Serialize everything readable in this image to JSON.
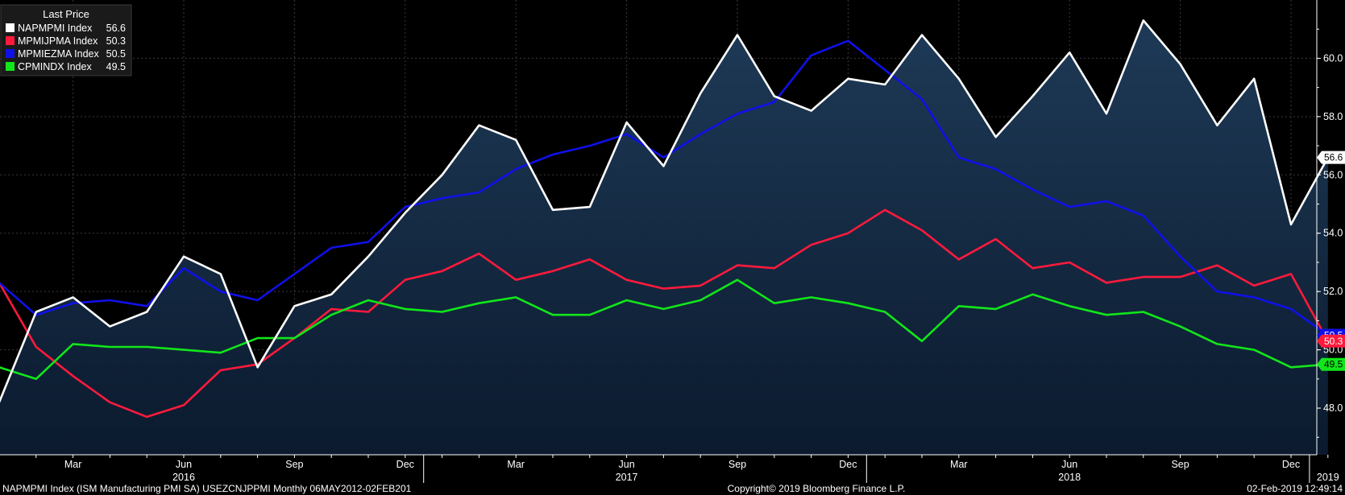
{
  "legend": {
    "title": "Last Price",
    "items": [
      {
        "name": "NAPMPMI Index",
        "value": "56.6",
        "color": "#ffffff"
      },
      {
        "name": "MPMIJPMA Index",
        "value": "50.3",
        "color": "#ff1a3c"
      },
      {
        "name": "MPMIEZMA Index",
        "value": "50.5",
        "color": "#1010e8"
      },
      {
        "name": "CPMINDX Index",
        "value": "49.5",
        "color": "#11e61a"
      }
    ]
  },
  "footer": {
    "left": "NAPMPMI Index (ISM Manufacturing PMI SA) USEZCNJPPMI  Monthly 06MAY2012-02FEB201",
    "center": "Copyright© 2019 Bloomberg Finance L.P.",
    "right": "02-Feb-2019 12:49:14"
  },
  "chart_data": {
    "type": "line",
    "title": "",
    "xlabel": "",
    "ylabel": "",
    "ylim": [
      46.4,
      62.0
    ],
    "y_ticks": [
      "48.0",
      "50.0",
      "52.0",
      "54.0",
      "56.0",
      "58.0",
      "60.0"
    ],
    "y_tick_values": [
      48,
      50,
      52,
      54,
      56,
      58,
      60
    ],
    "x_tick_labels": [
      {
        "label": "Mar",
        "month_index": 2
      },
      {
        "label": "Jun",
        "month_index": 5
      },
      {
        "label": "Sep",
        "month_index": 8
      },
      {
        "label": "Dec",
        "month_index": 11
      },
      {
        "label": "Mar",
        "month_index": 14
      },
      {
        "label": "Jun",
        "month_index": 17
      },
      {
        "label": "Sep",
        "month_index": 20
      },
      {
        "label": "Dec",
        "month_index": 23
      },
      {
        "label": "Mar",
        "month_index": 26
      },
      {
        "label": "Jun",
        "month_index": 29
      },
      {
        "label": "Sep",
        "month_index": 32
      },
      {
        "label": "Dec",
        "month_index": 35
      }
    ],
    "year_labels": [
      {
        "label": "2016",
        "month_index": 5
      },
      {
        "label": "2017",
        "month_index": 17
      },
      {
        "label": "2018",
        "month_index": 29
      },
      {
        "label": "2019",
        "month_index": 36
      }
    ],
    "x": [
      "2016-01",
      "2016-02",
      "2016-03",
      "2016-04",
      "2016-05",
      "2016-06",
      "2016-07",
      "2016-08",
      "2016-09",
      "2016-10",
      "2016-11",
      "2016-12",
      "2017-01",
      "2017-02",
      "2017-03",
      "2017-04",
      "2017-05",
      "2017-06",
      "2017-07",
      "2017-08",
      "2017-09",
      "2017-10",
      "2017-11",
      "2017-12",
      "2018-01",
      "2018-02",
      "2018-03",
      "2018-04",
      "2018-05",
      "2018-06",
      "2018-07",
      "2018-08",
      "2018-09",
      "2018-10",
      "2018-11",
      "2018-12",
      "2019-01"
    ],
    "series": [
      {
        "name": "NAPMPMI Index",
        "color": "#ffffff",
        "area": true,
        "last": "56.6",
        "values": [
          48.2,
          51.3,
          51.8,
          50.8,
          51.3,
          53.2,
          52.6,
          49.4,
          51.5,
          51.9,
          53.2,
          54.7,
          56.0,
          57.7,
          57.2,
          54.8,
          54.9,
          57.8,
          56.3,
          58.8,
          60.8,
          58.7,
          58.2,
          59.3,
          59.1,
          60.8,
          59.3,
          57.3,
          58.7,
          60.2,
          58.1,
          61.3,
          59.8,
          57.7,
          59.3,
          54.3,
          56.6
        ]
      },
      {
        "name": "MPMIJPMA Index",
        "color": "#ff1a3c",
        "area": false,
        "last": "50.3",
        "values": [
          52.3,
          50.1,
          49.1,
          48.2,
          47.7,
          48.1,
          49.3,
          49.5,
          50.4,
          51.4,
          51.3,
          52.4,
          52.7,
          53.3,
          52.4,
          52.7,
          53.1,
          52.4,
          52.1,
          52.2,
          52.9,
          52.8,
          53.6,
          54.0,
          54.8,
          54.1,
          53.1,
          53.8,
          52.8,
          53.0,
          52.3,
          52.5,
          52.5,
          52.9,
          52.2,
          52.6,
          50.3
        ]
      },
      {
        "name": "MPMIEZMA Index",
        "color": "#1010e8",
        "area": false,
        "last": "50.5",
        "values": [
          52.3,
          51.2,
          51.6,
          51.7,
          51.5,
          52.8,
          52.0,
          51.7,
          52.6,
          53.5,
          53.7,
          54.9,
          55.2,
          55.4,
          56.2,
          56.7,
          57.0,
          57.4,
          56.6,
          57.4,
          58.1,
          58.5,
          60.1,
          60.6,
          59.6,
          58.6,
          56.6,
          56.2,
          55.5,
          54.9,
          55.1,
          54.6,
          53.2,
          52.0,
          51.8,
          51.4,
          50.5
        ]
      },
      {
        "name": "CPMINDX Index",
        "color": "#11e61a",
        "area": false,
        "last": "49.5",
        "values": [
          49.4,
          49.0,
          50.2,
          50.1,
          50.1,
          50.0,
          49.9,
          50.4,
          50.4,
          51.2,
          51.7,
          51.4,
          51.3,
          51.6,
          51.8,
          51.2,
          51.2,
          51.7,
          51.4,
          51.7,
          52.4,
          51.6,
          51.8,
          51.6,
          51.3,
          50.3,
          51.5,
          51.4,
          51.9,
          51.5,
          51.2,
          51.3,
          50.8,
          50.2,
          50.0,
          49.4,
          49.5
        ]
      }
    ]
  }
}
